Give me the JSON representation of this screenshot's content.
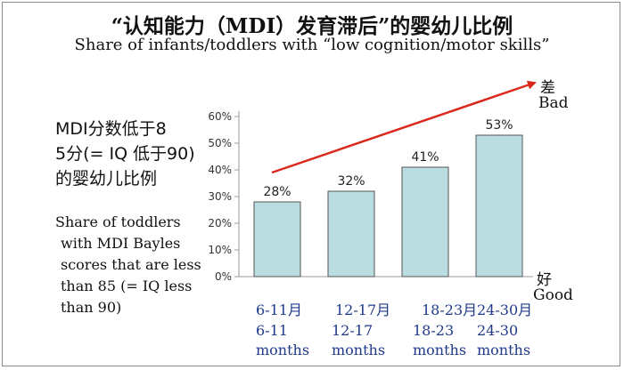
{
  "title": "“认知能力（MDI）发育滞后”的婴幼儿比例",
  "subtitle": "Share of infants/toddlers with “low cognition/motor skills”",
  "left_label_zh": [
    "MDI分数低于8",
    "5分(= IQ 低于90)",
    "的婴幼儿比例"
  ],
  "left_label_en": [
    "Share of toddlers",
    "with MDI Bayles",
    "scores that are less",
    "than 85 (= IQ less",
    "than 90)"
  ],
  "annotations": {
    "bad_zh": "差",
    "bad_en": "Bad",
    "good_zh": "好",
    "good_en": "Good"
  },
  "colors": {
    "bar_fill": "#b9dde0",
    "bar_stroke": "#555555",
    "arrow": "#d9291c",
    "category_text": "#1f3a8a"
  },
  "chart_data": {
    "type": "bar",
    "categories": [
      {
        "zh": "6-11月",
        "en_range": "6-11",
        "en_unit": "months"
      },
      {
        "zh": "12-17月",
        "en_range": "12-17",
        "en_unit": "months"
      },
      {
        "zh": "18-23月",
        "en_range": "18-23",
        "en_unit": "months"
      },
      {
        "zh": "24-30月",
        "en_range": "24-30",
        "en_unit": "months"
      }
    ],
    "values": [
      28,
      32,
      41,
      53
    ],
    "value_labels": [
      "28%",
      "32%",
      "41%",
      "53%"
    ],
    "y_ticks": [
      "0%",
      "10%",
      "20%",
      "30%",
      "40%",
      "50%",
      "60%"
    ],
    "ylim": [
      0,
      60
    ],
    "grid": false,
    "trend_arrow": "increasing"
  }
}
